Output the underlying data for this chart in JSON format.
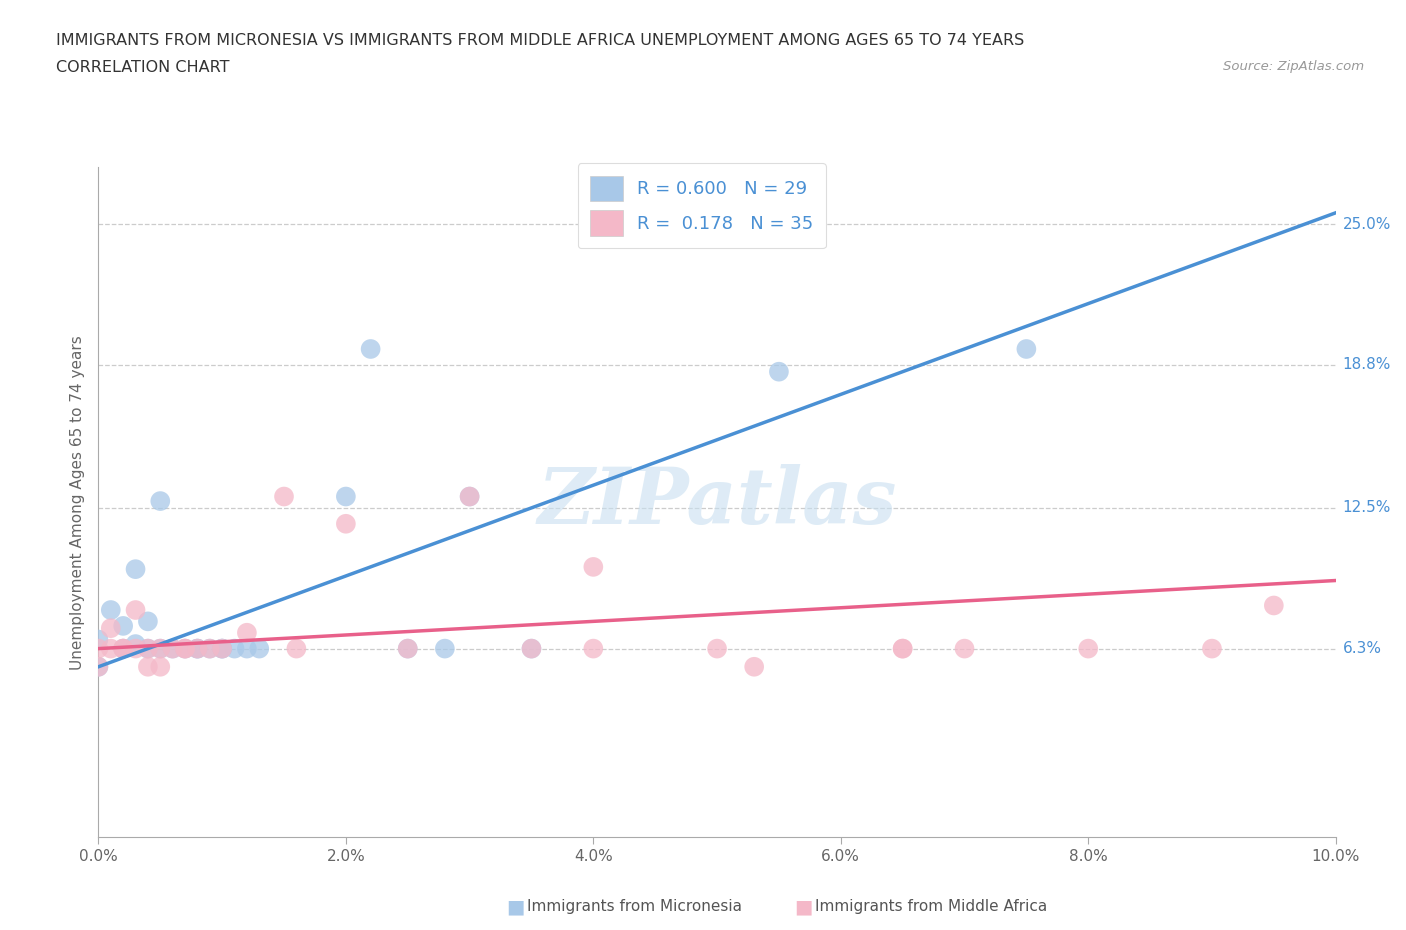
{
  "title_line1": "IMMIGRANTS FROM MICRONESIA VS IMMIGRANTS FROM MIDDLE AFRICA UNEMPLOYMENT AMONG AGES 65 TO 74 YEARS",
  "title_line2": "CORRELATION CHART",
  "source": "Source: ZipAtlas.com",
  "ylabel": "Unemployment Among Ages 65 to 74 years",
  "xlim": [
    0.0,
    0.1
  ],
  "ylim": [
    -0.02,
    0.275
  ],
  "xtick_labels": [
    "0.0%",
    "2.0%",
    "4.0%",
    "6.0%",
    "8.0%",
    "10.0%"
  ],
  "xtick_values": [
    0.0,
    0.02,
    0.04,
    0.06,
    0.08,
    0.1
  ],
  "ytick_labels": [
    "6.3%",
    "12.5%",
    "18.8%",
    "25.0%"
  ],
  "ytick_values": [
    0.063,
    0.125,
    0.188,
    0.25
  ],
  "legend_blue_label": "Immigrants from Micronesia",
  "legend_pink_label": "Immigrants from Middle Africa",
  "blue_color": "#a8c8e8",
  "pink_color": "#f4b8c8",
  "blue_line_color": "#4a90d4",
  "pink_line_color": "#e8608a",
  "ytick_color": "#4a90d4",
  "watermark_color": "#c8dff0",
  "blue_scatter_x": [
    0.0,
    0.0,
    0.001,
    0.002,
    0.002,
    0.003,
    0.003,
    0.004,
    0.004,
    0.005,
    0.005,
    0.006,
    0.007,
    0.008,
    0.008,
    0.009,
    0.01,
    0.01,
    0.011,
    0.012,
    0.013,
    0.02,
    0.022,
    0.025,
    0.028,
    0.03,
    0.035,
    0.055,
    0.075
  ],
  "blue_scatter_y": [
    0.067,
    0.055,
    0.08,
    0.063,
    0.073,
    0.065,
    0.098,
    0.063,
    0.075,
    0.128,
    0.063,
    0.063,
    0.063,
    0.063,
    0.063,
    0.063,
    0.063,
    0.063,
    0.063,
    0.063,
    0.063,
    0.13,
    0.195,
    0.063,
    0.063,
    0.13,
    0.063,
    0.185,
    0.195
  ],
  "pink_scatter_x": [
    0.0,
    0.0,
    0.001,
    0.001,
    0.002,
    0.002,
    0.003,
    0.003,
    0.004,
    0.004,
    0.005,
    0.005,
    0.006,
    0.007,
    0.007,
    0.008,
    0.009,
    0.01,
    0.012,
    0.015,
    0.016,
    0.02,
    0.025,
    0.03,
    0.035,
    0.04,
    0.04,
    0.05,
    0.053,
    0.065,
    0.065,
    0.07,
    0.08,
    0.09,
    0.095
  ],
  "pink_scatter_y": [
    0.063,
    0.055,
    0.063,
    0.072,
    0.063,
    0.063,
    0.063,
    0.08,
    0.055,
    0.063,
    0.063,
    0.055,
    0.063,
    0.063,
    0.063,
    0.063,
    0.063,
    0.063,
    0.07,
    0.13,
    0.063,
    0.118,
    0.063,
    0.13,
    0.063,
    0.063,
    0.099,
    0.063,
    0.055,
    0.063,
    0.063,
    0.063,
    0.063,
    0.063,
    0.082
  ],
  "blue_line_x": [
    0.0,
    0.1
  ],
  "blue_line_y": [
    0.055,
    0.255
  ],
  "pink_line_x": [
    0.0,
    0.1
  ],
  "pink_line_y": [
    0.063,
    0.093
  ]
}
